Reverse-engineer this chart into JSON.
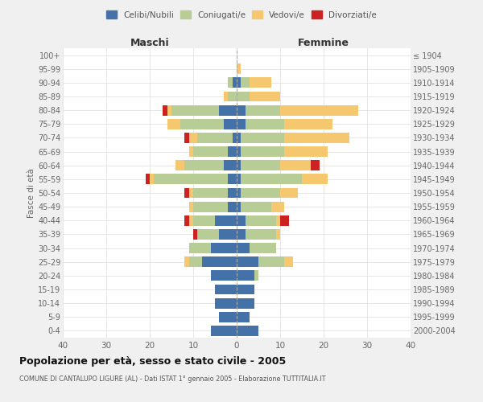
{
  "age_groups": [
    "100+",
    "95-99",
    "90-94",
    "85-89",
    "80-84",
    "75-79",
    "70-74",
    "65-69",
    "60-64",
    "55-59",
    "50-54",
    "45-49",
    "40-44",
    "35-39",
    "30-34",
    "25-29",
    "20-24",
    "15-19",
    "10-14",
    "5-9",
    "0-4"
  ],
  "birth_years": [
    "≤ 1904",
    "1905-1909",
    "1910-1914",
    "1915-1919",
    "1920-1924",
    "1925-1929",
    "1930-1934",
    "1935-1939",
    "1940-1944",
    "1945-1949",
    "1950-1954",
    "1955-1959",
    "1960-1964",
    "1965-1969",
    "1970-1974",
    "1975-1979",
    "1980-1984",
    "1985-1989",
    "1990-1994",
    "1995-1999",
    "2000-2004"
  ],
  "colors": {
    "celibe": "#4472a8",
    "coniugato": "#b8cc96",
    "vedovo": "#f5c76e",
    "divorziato": "#cc2222"
  },
  "maschi": {
    "celibe": [
      0,
      0,
      1,
      0,
      4,
      3,
      1,
      2,
      3,
      2,
      2,
      2,
      5,
      4,
      6,
      8,
      6,
      5,
      5,
      4,
      6
    ],
    "coniugato": [
      0,
      0,
      1,
      2,
      11,
      10,
      8,
      8,
      9,
      17,
      8,
      8,
      5,
      5,
      5,
      3,
      0,
      0,
      0,
      0,
      0
    ],
    "vedovo": [
      0,
      0,
      0,
      1,
      1,
      3,
      2,
      1,
      2,
      1,
      1,
      1,
      1,
      0,
      0,
      1,
      0,
      0,
      0,
      0,
      0
    ],
    "divorziato": [
      0,
      0,
      0,
      0,
      1,
      0,
      1,
      0,
      0,
      1,
      1,
      0,
      1,
      1,
      0,
      0,
      0,
      0,
      0,
      0,
      0
    ]
  },
  "femmine": {
    "nubile": [
      0,
      0,
      1,
      0,
      2,
      2,
      1,
      1,
      1,
      1,
      1,
      1,
      2,
      2,
      3,
      5,
      4,
      4,
      4,
      3,
      5
    ],
    "coniugata": [
      0,
      0,
      2,
      3,
      8,
      9,
      10,
      10,
      9,
      14,
      9,
      7,
      7,
      7,
      6,
      6,
      1,
      0,
      0,
      0,
      0
    ],
    "vedova": [
      0,
      1,
      5,
      7,
      18,
      11,
      15,
      10,
      7,
      6,
      4,
      3,
      1,
      1,
      0,
      2,
      0,
      0,
      0,
      0,
      0
    ],
    "divorziata": [
      0,
      0,
      0,
      0,
      0,
      0,
      0,
      0,
      2,
      0,
      0,
      0,
      2,
      0,
      0,
      0,
      0,
      0,
      0,
      0,
      0
    ]
  },
  "xlim": 40,
  "title": "Popolazione per età, sesso e stato civile - 2005",
  "subtitle": "COMUNE DI CANTALUPO LIGURE (AL) - Dati ISTAT 1° gennaio 2005 - Elaborazione TUTTITALIA.IT",
  "ylabel_left": "Fasce di età",
  "xlabel_maschi": "Maschi",
  "xlabel_femmine": "Femmine",
  "bg_color": "#f0f0f0",
  "plot_bg_color": "#ffffff"
}
